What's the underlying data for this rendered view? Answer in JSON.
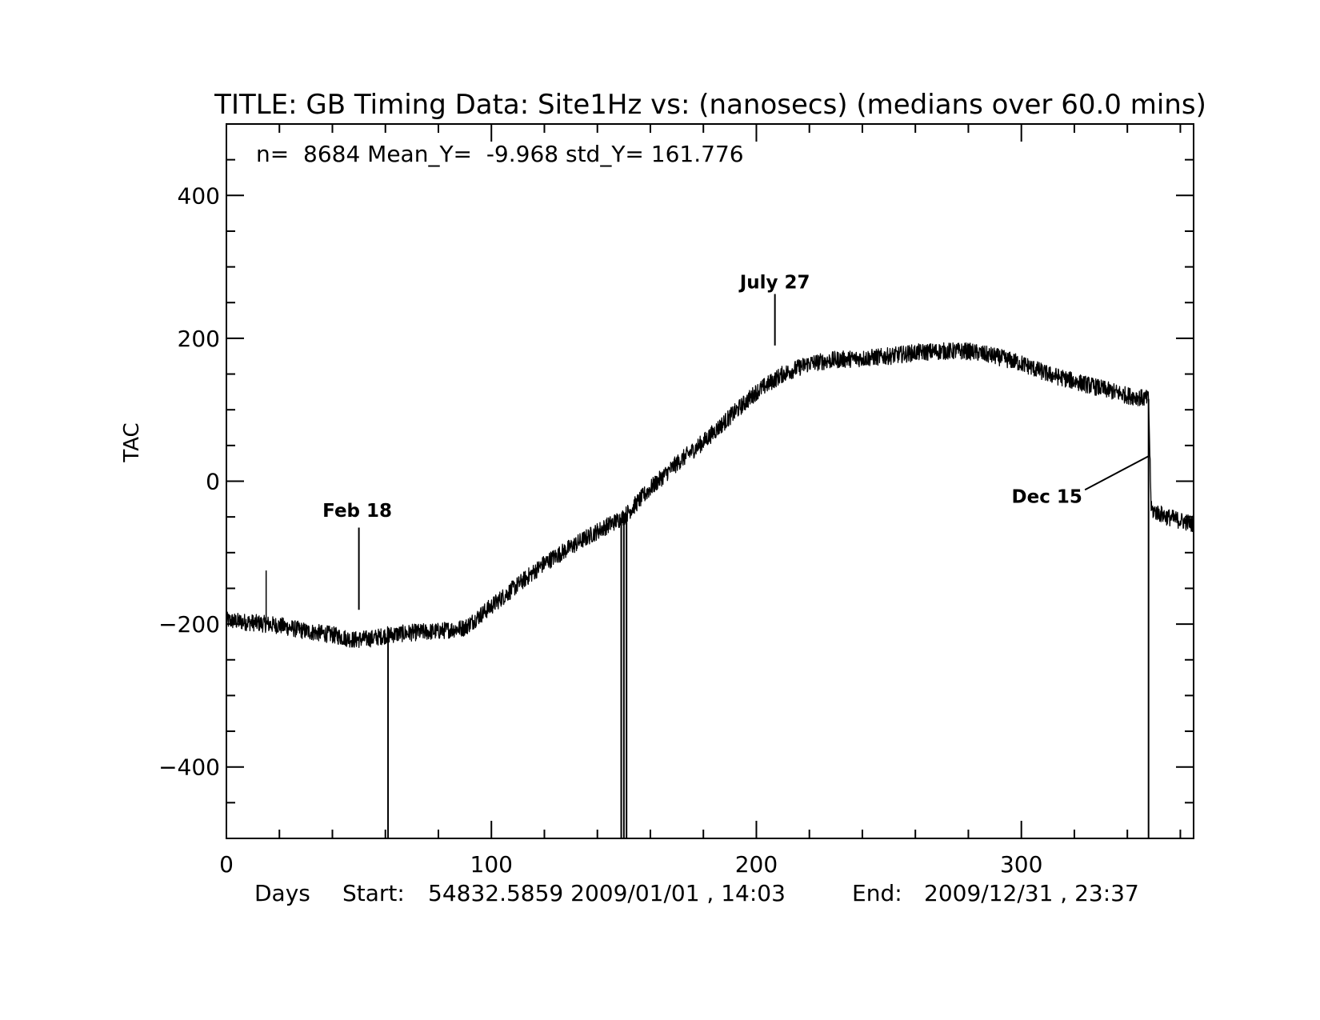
{
  "chart_data": {
    "type": "line",
    "title": "TITLE: GB Timing Data: Site1Hz vs: (nanosecs) (medians over 60.0 mins)",
    "stats": "n=  8684 Mean_Y=  -9.968 std_Y= 161.776",
    "ylabel": "TAC",
    "xlabel": "Days",
    "footer": {
      "xlabel": "Days",
      "start_label": "Start:",
      "start_value": "54832.5859 2009/01/01 , 14:03",
      "end_label": "End:",
      "end_value": "2009/12/31 , 23:37"
    },
    "xlim": [
      0,
      365
    ],
    "ylim": [
      -500,
      500
    ],
    "x_ticks": [
      {
        "value": 0,
        "label": "0"
      },
      {
        "value": 100,
        "label": "100"
      },
      {
        "value": 200,
        "label": "200"
      },
      {
        "value": 300,
        "label": "300"
      }
    ],
    "y_ticks": [
      {
        "value": -400,
        "label": "−400"
      },
      {
        "value": -200,
        "label": "−200"
      },
      {
        "value": 0,
        "label": "0"
      },
      {
        "value": 200,
        "label": "200"
      },
      {
        "value": 400,
        "label": "400"
      }
    ],
    "grid": false,
    "series": [
      {
        "x": [
          0,
          10,
          20,
          30,
          40,
          48,
          55,
          61,
          70,
          80,
          90,
          100,
          110,
          120,
          130,
          140,
          150,
          160,
          170,
          180,
          190,
          200,
          210,
          220,
          230,
          240,
          250,
          260,
          270,
          280,
          290,
          300,
          310,
          320,
          330,
          340,
          348,
          349,
          355,
          360,
          365
        ],
        "y": [
          -195,
          -198,
          -202,
          -210,
          -215,
          -222,
          -220,
          -215,
          -212,
          -210,
          -205,
          -175,
          -145,
          -115,
          -92,
          -70,
          -50,
          -10,
          25,
          55,
          90,
          125,
          150,
          165,
          170,
          172,
          175,
          180,
          182,
          182,
          175,
          165,
          150,
          140,
          130,
          120,
          115,
          -40,
          -50,
          -55,
          -60
        ],
        "noise": 12,
        "dropouts": [
          61,
          149,
          150,
          151,
          348
        ],
        "spikes": [
          {
            "x": 15,
            "y": -125
          }
        ]
      }
    ],
    "annotations": [
      {
        "text": "Feb 18",
        "x": 50,
        "y": -180
      },
      {
        "text": "July 27",
        "x": 207,
        "y": 190
      },
      {
        "text": "Dec 15",
        "x": 348,
        "y": 35
      }
    ]
  }
}
